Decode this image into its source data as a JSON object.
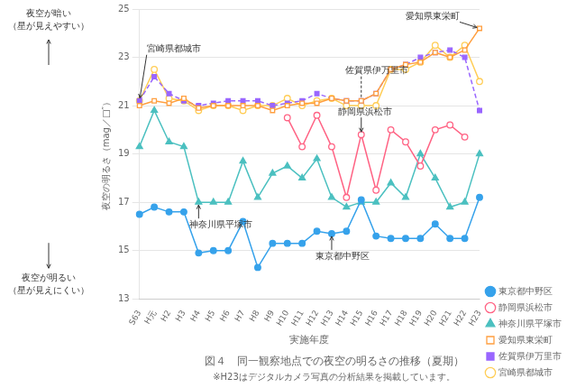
{
  "chart_data": {
    "type": "line",
    "title": "図４　同一観察地点での夜空の明るさの推移（夏期）",
    "subtitle": "※H23はデジタルカメラ写真の分析結果を掲載しています。",
    "x_label": "実施年度",
    "y_label": "夜空の明るさ（mag／□″）",
    "categories": [
      "S63",
      "H元",
      "H2",
      "H3",
      "H4",
      "H5",
      "H6",
      "H7",
      "H8",
      "H9",
      "H10",
      "H11",
      "H12",
      "H13",
      "H14",
      "H15",
      "H16",
      "H17",
      "H18",
      "H19",
      "H20",
      "H21",
      "H22",
      "H23"
    ],
    "series": [
      {
        "name": "東京都中野区",
        "marker": "circle",
        "line_style": "solid",
        "values": [
          16.5,
          16.8,
          16.6,
          16.6,
          14.9,
          15.0,
          15.0,
          16.2,
          14.3,
          15.3,
          15.3,
          15.3,
          15.8,
          15.7,
          15.8,
          17.1,
          15.6,
          15.5,
          15.5,
          15.5,
          16.1,
          15.5,
          15.5,
          17.2
        ]
      },
      {
        "name": "静岡県浜松市",
        "marker": "open_circle",
        "line_style": "solid",
        "values": [
          null,
          null,
          null,
          null,
          null,
          null,
          null,
          null,
          null,
          null,
          20.5,
          19.3,
          20.6,
          19.3,
          17.2,
          19.8,
          17.5,
          20.0,
          19.5,
          18.5,
          20.0,
          20.2,
          19.7,
          null
        ]
      },
      {
        "name": "神奈川県平塚市",
        "marker": "triangle",
        "line_style": "solid",
        "values": [
          19.3,
          20.8,
          19.5,
          19.3,
          17.0,
          17.0,
          17.0,
          18.7,
          17.2,
          18.2,
          18.5,
          18.0,
          18.8,
          17.2,
          16.8,
          17.0,
          17.0,
          17.8,
          17.2,
          19.0,
          18.0,
          16.8,
          17.0,
          19.0
        ]
      },
      {
        "name": "愛知県東栄町",
        "marker": "open_square",
        "line_style": "solid",
        "values": [
          21.0,
          21.2,
          21.1,
          21.3,
          20.9,
          21.0,
          21.0,
          21.0,
          21.0,
          20.8,
          21.0,
          21.1,
          21.1,
          21.3,
          21.2,
          21.2,
          21.5,
          22.5,
          22.7,
          22.8,
          23.2,
          23.0,
          23.3,
          24.2
        ]
      },
      {
        "name": "佐賀県伊万里市",
        "marker": "square",
        "line_style": "dashed",
        "values": [
          21.2,
          22.2,
          21.5,
          21.2,
          21.0,
          21.1,
          21.2,
          21.2,
          21.2,
          21.0,
          21.1,
          21.2,
          21.5,
          21.3,
          21.2,
          21.2,
          21.5,
          22.5,
          22.7,
          23.0,
          23.2,
          23.3,
          23.0,
          20.8
        ]
      },
      {
        "name": "宮崎県都城市",
        "marker": "open_circle",
        "line_style": "solid",
        "values": [
          21.2,
          22.5,
          21.3,
          21.2,
          20.8,
          21.0,
          21.0,
          20.8,
          21.0,
          21.0,
          21.3,
          21.0,
          21.2,
          21.3,
          21.0,
          21.0,
          21.0,
          22.5,
          22.5,
          22.8,
          23.5,
          23.0,
          23.5,
          22.0
        ]
      }
    ],
    "ylim": [
      13,
      25
    ],
    "yticks": [
      13,
      15,
      17,
      19,
      21,
      23,
      25
    ],
    "grid": true,
    "legend": "lower right",
    "annotations": [
      {
        "text": "宮崎県都城市",
        "x": "S63",
        "y": 21.2
      },
      {
        "text": "神奈川県平塚市",
        "x": "H4",
        "y": 17.0
      },
      {
        "text": "静岡県浜松市",
        "x": "H15",
        "y": 19.8
      },
      {
        "text": "東京都中野区",
        "x": "H13",
        "y": 15.7
      },
      {
        "text": "愛知県東栄町",
        "x": "H23",
        "y": 24.2
      },
      {
        "text": "佐賀県伊万里市",
        "x": "H15",
        "y": 21.2,
        "line_style": "dashed"
      },
      {
        "text": "夜空が暗い\n（星が見えやすい）",
        "arrow": "up"
      },
      {
        "text": "夜空が明るい\n（星が見えにくい）",
        "arrow": "down"
      }
    ]
  }
}
